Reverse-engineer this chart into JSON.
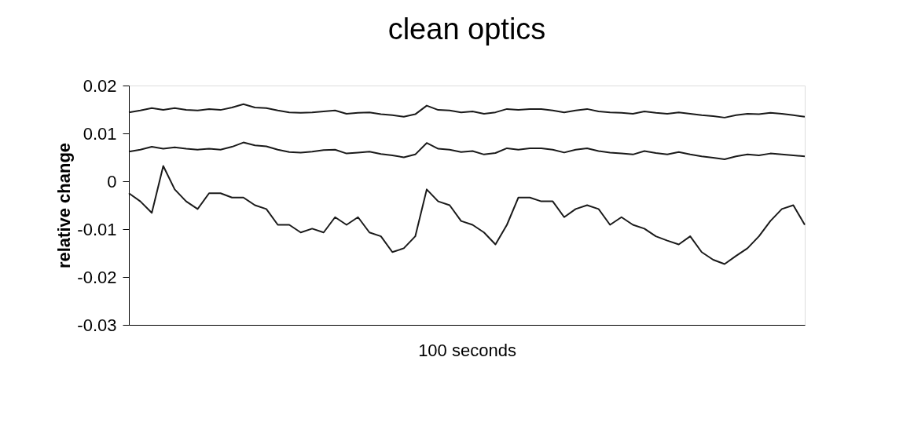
{
  "chart_data": {
    "type": "line",
    "title": "clean optics",
    "xlabel": "100 seconds",
    "ylabel": "relative change",
    "categories": [
      null,
      null,
      null,
      null,
      null,
      null,
      null,
      null,
      null,
      null,
      null,
      null,
      null,
      null,
      null,
      null,
      null,
      null,
      null,
      null,
      null,
      null,
      null,
      null,
      null,
      null,
      null,
      null,
      null,
      null,
      null,
      null,
      null,
      null,
      null,
      null,
      null,
      null,
      null,
      null,
      null,
      null,
      null,
      null,
      null,
      null,
      null,
      null,
      null,
      null,
      null,
      null,
      null,
      null,
      null,
      null,
      null,
      null,
      null,
      null
    ],
    "series": [
      {
        "color": "#1a1a1a",
        "values": [
          0.0144,
          0.0148,
          0.0153,
          0.0149,
          0.0153,
          0.0149,
          0.0148,
          0.0151,
          0.0149,
          0.0154,
          0.0161,
          0.0154,
          0.0153,
          0.0148,
          0.0144,
          0.0143,
          0.0144,
          0.0146,
          0.0148,
          0.0141,
          0.0143,
          0.0144,
          0.014,
          0.0138,
          0.0135,
          0.014,
          0.0158,
          0.0149,
          0.0148,
          0.0144,
          0.0146,
          0.0141,
          0.0144,
          0.0151,
          0.0149,
          0.0151,
          0.0151,
          0.0148,
          0.0144,
          0.0148,
          0.0151,
          0.0146,
          0.0144,
          0.0143,
          0.0141,
          0.0146,
          0.0143,
          0.0141,
          0.0144,
          0.0141,
          0.0138,
          0.0136,
          0.0133,
          0.0138,
          0.0141,
          0.014,
          0.0143,
          0.0141,
          0.0138,
          0.0135
        ]
      },
      {
        "color": "#1a1a1a",
        "values": [
          0.0062,
          0.0066,
          0.0072,
          0.0068,
          0.0071,
          0.0068,
          0.0066,
          0.0068,
          0.0066,
          0.0072,
          0.0081,
          0.0075,
          0.0073,
          0.0066,
          0.0061,
          0.006,
          0.0062,
          0.0065,
          0.0066,
          0.0058,
          0.006,
          0.0062,
          0.0057,
          0.0054,
          0.005,
          0.0056,
          0.008,
          0.0068,
          0.0066,
          0.0061,
          0.0063,
          0.0056,
          0.0059,
          0.0069,
          0.0066,
          0.0069,
          0.0069,
          0.0066,
          0.006,
          0.0066,
          0.0069,
          0.0063,
          0.006,
          0.0058,
          0.0056,
          0.0063,
          0.0059,
          0.0056,
          0.0061,
          0.0056,
          0.0052,
          0.0049,
          0.0046,
          0.0052,
          0.0056,
          0.0054,
          0.0058,
          0.0056,
          0.0054,
          0.0052
        ]
      },
      {
        "color": "#1a1a1a",
        "values": [
          -0.0025,
          -0.0042,
          -0.0066,
          0.0032,
          -0.0017,
          -0.0042,
          -0.0058,
          -0.0025,
          -0.0025,
          -0.0034,
          -0.0034,
          -0.005,
          -0.0058,
          -0.0091,
          -0.0091,
          -0.0107,
          -0.0099,
          -0.0107,
          -0.0075,
          -0.0091,
          -0.0075,
          -0.0107,
          -0.0115,
          -0.0148,
          -0.014,
          -0.0115,
          -0.0017,
          -0.0042,
          -0.005,
          -0.0083,
          -0.0091,
          -0.0107,
          -0.0132,
          -0.0091,
          -0.0034,
          -0.0034,
          -0.0042,
          -0.0042,
          -0.0075,
          -0.0058,
          -0.005,
          -0.0058,
          -0.0091,
          -0.0075,
          -0.0091,
          -0.0099,
          -0.0115,
          -0.0124,
          -0.0132,
          -0.0115,
          -0.0148,
          -0.0164,
          -0.0173,
          -0.0156,
          -0.014,
          -0.0115,
          -0.0083,
          -0.0058,
          -0.005,
          -0.0091
        ]
      }
    ],
    "ylim": [
      -0.03,
      0.02
    ],
    "yticks": [
      0.02,
      0.01,
      0,
      -0.01,
      -0.02,
      -0.03
    ],
    "tick_labels": "y",
    "grid": false,
    "legend": false,
    "marker": "none",
    "line_style": "solid"
  }
}
